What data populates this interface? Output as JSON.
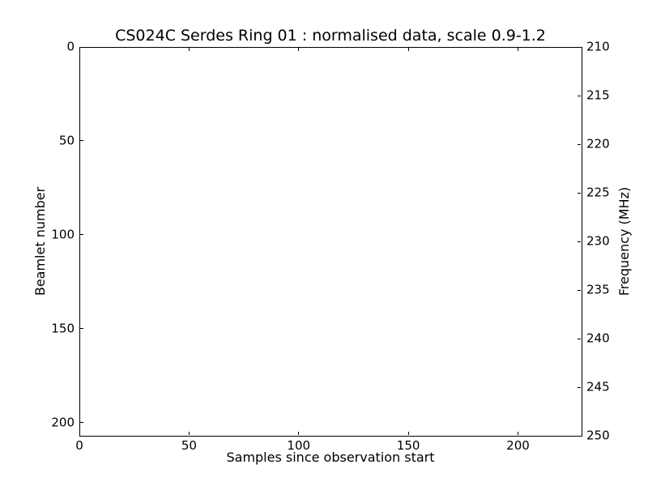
{
  "figure": {
    "background": "#ffffff",
    "text_color": "#000000",
    "axis_color": "#000000"
  },
  "chart_data": {
    "type": "heatmap",
    "title": "CS024C Serdes Ring 01 : normalised data, scale 0.9-1.2",
    "xlabel": "Samples since observation start",
    "ylabel": "Beamlet number",
    "ylabel_right": "Frequency (MHz)",
    "xticks": [
      0,
      50,
      100,
      150,
      200
    ],
    "yticks": [
      0,
      50,
      100,
      150,
      200
    ],
    "yticks_right": [
      210,
      215,
      220,
      225,
      230,
      235,
      240,
      245,
      250
    ],
    "xlim": [
      0,
      229
    ],
    "ylim": [
      0,
      207
    ],
    "ylim_right": [
      210,
      250
    ],
    "y_axis_inverted": true,
    "grid": false,
    "legend": null,
    "color_scale": [
      0.9,
      1.2
    ],
    "values": [],
    "data_note": "plot interior is uniformly white; no visible data features at this color scale",
    "plot_bg": "#ffffff",
    "tick_direction": "in"
  }
}
